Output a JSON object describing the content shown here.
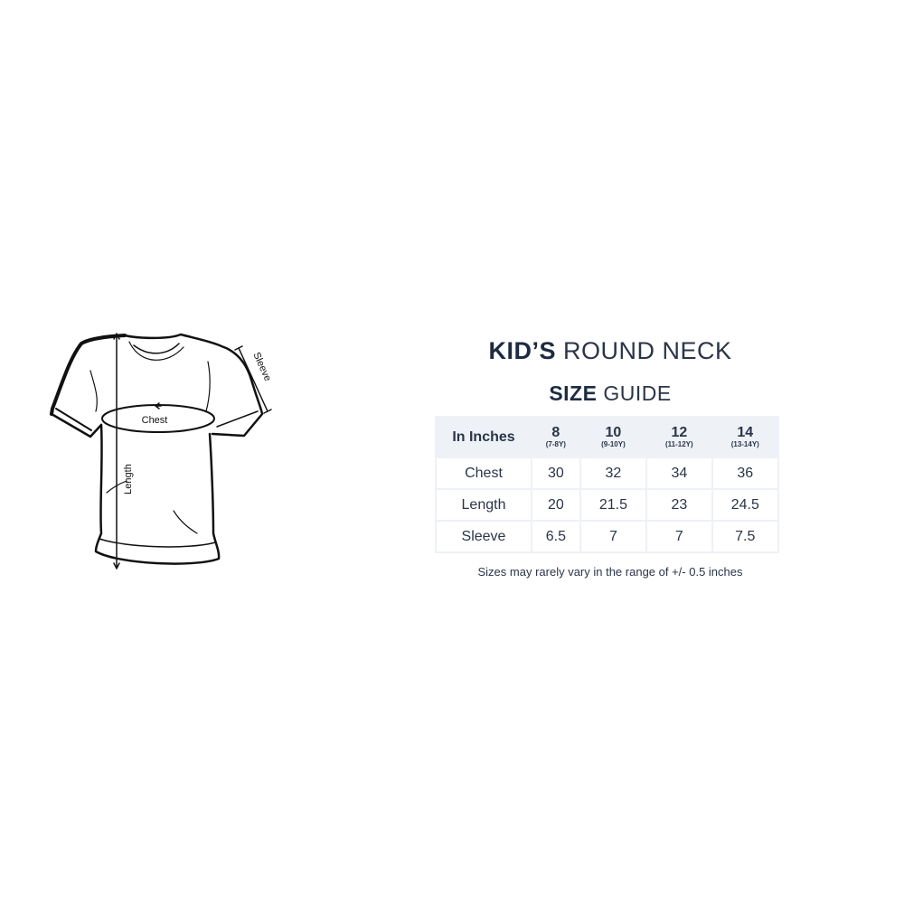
{
  "diagram": {
    "chest_label": "Chest",
    "length_label": "Length",
    "sleeve_label": "Sleeve"
  },
  "title": {
    "line1_bold": "KID’S",
    "line1_light": "ROUND NECK",
    "line2_bold": "SIZE",
    "line2_light": "GUIDE"
  },
  "table": {
    "corner": "In Inches",
    "sizes": [
      {
        "size": "8",
        "age": "(7-8Y)"
      },
      {
        "size": "10",
        "age": "(9-10Y)"
      },
      {
        "size": "12",
        "age": "(11-12Y)"
      },
      {
        "size": "14",
        "age": "(13-14Y)"
      }
    ],
    "rows": [
      {
        "label": "Chest",
        "values": [
          "30",
          "32",
          "34",
          "36"
        ]
      },
      {
        "label": "Length",
        "values": [
          "20",
          "21.5",
          "23",
          "24.5"
        ]
      },
      {
        "label": "Sleeve",
        "values": [
          "6.5",
          "7",
          "7",
          "7.5"
        ]
      }
    ]
  },
  "note": "Sizes may rarely vary in the range of +/- 0.5 inches",
  "colors": {
    "text": "#1f2f44",
    "header_bg": "#eef2f6",
    "border": "#eef1f5"
  }
}
